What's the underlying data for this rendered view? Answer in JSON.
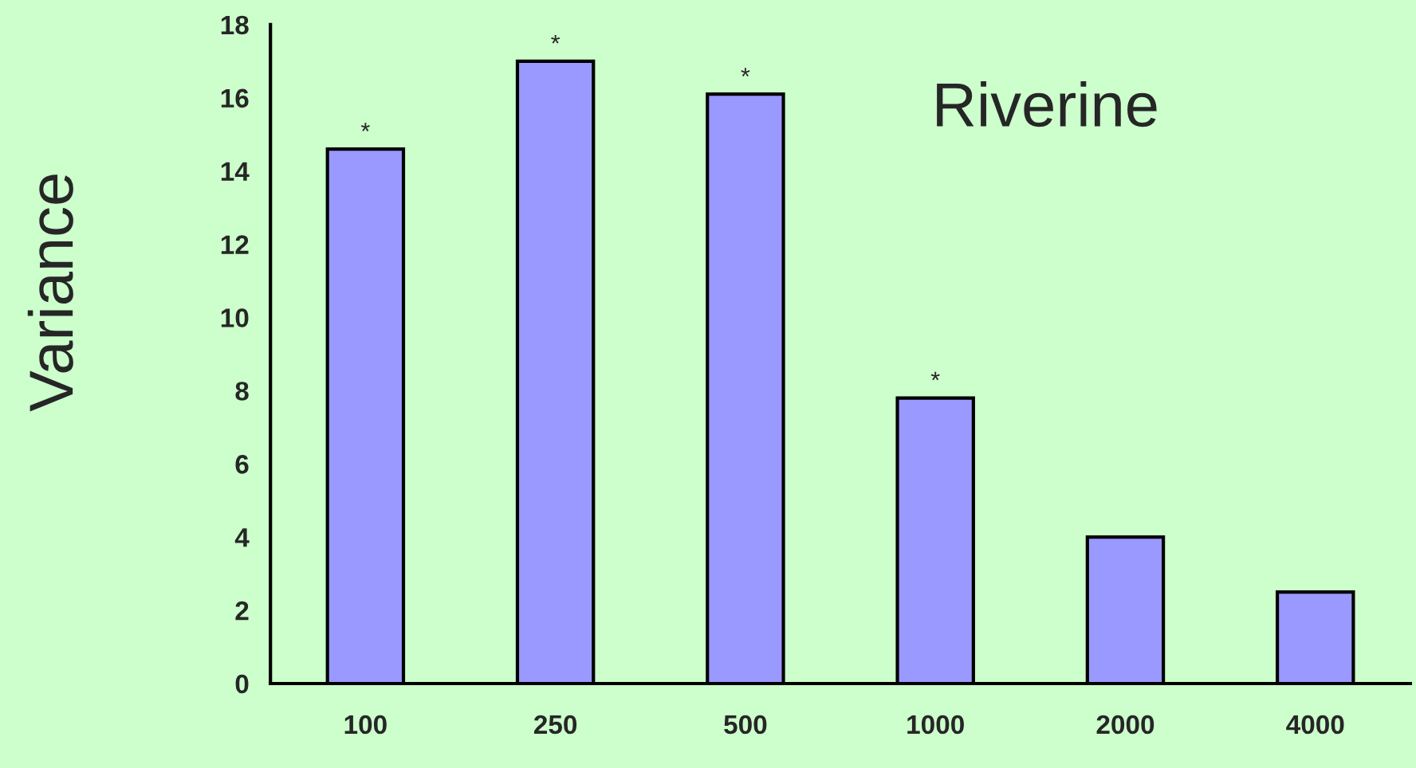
{
  "chart_data": {
    "type": "bar",
    "title": "Riverine",
    "ylabel": "Variance",
    "categories": [
      "100",
      "250",
      "500",
      "1000",
      "2000",
      "4000"
    ],
    "values": [
      14.6,
      17.0,
      16.1,
      7.8,
      4.0,
      2.5
    ],
    "color": "#9999ff",
    "ylim": [
      0,
      18
    ],
    "yticks": [
      0,
      2,
      4,
      6,
      8,
      10,
      12,
      14,
      16,
      18
    ],
    "grid": false,
    "annotations": [
      {
        "text": "*",
        "x": "100",
        "y": 14.6
      },
      {
        "text": "*",
        "x": "250",
        "y": 17.0
      },
      {
        "text": "*",
        "x": "500",
        "y": 16.1
      },
      {
        "text": "*",
        "x": "1000",
        "y": 7.8
      }
    ]
  }
}
